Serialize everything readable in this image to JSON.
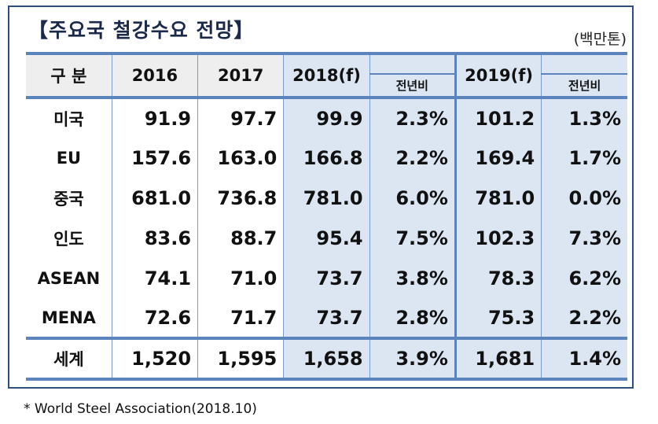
{
  "title": "【주요국 철강수요 전망】",
  "unit": "(백만톤)",
  "headers": {
    "category": "구 분",
    "y2016": "2016",
    "y2017": "2017",
    "y2018": "2018(f)",
    "yoy2018": "전년비",
    "y2019": "2019(f)",
    "yoy2019": "전년비"
  },
  "rows": [
    {
      "name": "미국",
      "v2016": "91.9",
      "v2017": "97.7",
      "v2018": "99.9",
      "yoy2018": "2.3%",
      "v2019": "101.2",
      "yoy2019": "1.3%"
    },
    {
      "name": "EU",
      "v2016": "157.6",
      "v2017": "163.0",
      "v2018": "166.8",
      "yoy2018": "2.2%",
      "v2019": "169.4",
      "yoy2019": "1.7%"
    },
    {
      "name": "중국",
      "v2016": "681.0",
      "v2017": "736.8",
      "v2018": "781.0",
      "yoy2018": "6.0%",
      "v2019": "781.0",
      "yoy2019": "0.0%"
    },
    {
      "name": "인도",
      "v2016": "83.6",
      "v2017": "88.7",
      "v2018": "95.4",
      "yoy2018": "7.5%",
      "v2019": "102.3",
      "yoy2019": "7.3%"
    },
    {
      "name": "ASEAN",
      "v2016": "74.1",
      "v2017": "71.0",
      "v2018": "73.7",
      "yoy2018": "3.8%",
      "v2019": "78.3",
      "yoy2019": "6.2%"
    },
    {
      "name": "MENA",
      "v2016": "72.6",
      "v2017": "71.7",
      "v2018": "73.7",
      "yoy2018": "2.8%",
      "v2019": "75.3",
      "yoy2019": "2.2%"
    }
  ],
  "total": {
    "name": "세계",
    "v2016": "1,520",
    "v2017": "1,595",
    "v2018": "1,658",
    "yoy2018": "3.9%",
    "v2019": "1,681",
    "yoy2019": "1.4%"
  },
  "note": "* World Steel Association(2018.10)"
}
